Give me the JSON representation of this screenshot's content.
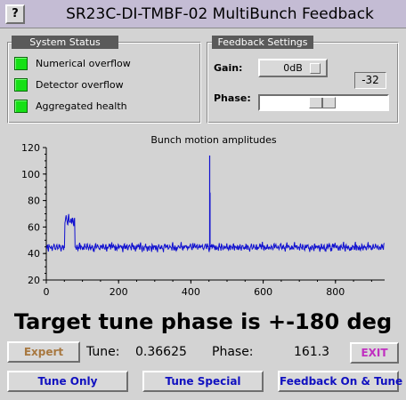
{
  "window": {
    "help_label": "?",
    "title": "SR23C-DI-TMBF-02 MultiBunch Feedback"
  },
  "system_status": {
    "title": "System Status",
    "items": [
      {
        "label": "Numerical overflow",
        "state": "ok",
        "color": "#16e016"
      },
      {
        "label": "Detector overflow",
        "state": "ok",
        "color": "#16e016"
      },
      {
        "label": "Aggregated health",
        "state": "ok",
        "color": "#16e016"
      }
    ]
  },
  "feedback_settings": {
    "title": "Feedback Settings",
    "gain_label": "Gain:",
    "gain_button": "0dB",
    "gain_value": "-32",
    "phase_label": "Phase:",
    "phase_position": 0.49
  },
  "chart_data": {
    "type": "line",
    "title": "Bunch motion amplitudes",
    "xlabel": "",
    "ylabel": "",
    "xlim": [
      0,
      936
    ],
    "ylim": [
      20,
      120
    ],
    "x_ticks": [
      0,
      200,
      400,
      600,
      800
    ],
    "y_ticks": [
      20,
      40,
      60,
      80,
      100,
      120
    ],
    "grid": false,
    "color": "#1010d0",
    "series": [
      {
        "values": [
          44,
          46,
          43,
          47,
          45,
          44,
          46,
          42,
          45,
          47,
          44,
          43,
          46,
          45,
          44,
          47,
          45,
          43,
          44,
          46,
          44,
          46,
          63,
          67,
          66,
          62,
          68,
          65,
          64,
          66,
          63,
          67,
          62,
          65,
          45,
          44,
          46,
          43,
          45,
          47,
          44,
          46,
          45,
          43,
          44,
          46,
          45,
          44,
          47,
          45,
          43,
          46,
          44,
          45,
          46,
          44,
          43,
          45,
          47,
          44,
          45,
          46,
          44,
          43,
          46,
          45,
          44,
          47,
          45,
          44,
          46,
          43,
          45,
          44,
          46,
          45,
          43,
          47,
          44,
          46,
          45,
          44,
          46,
          43,
          45,
          47,
          44,
          45,
          46,
          44,
          43,
          45,
          47,
          44,
          46,
          45,
          43,
          44,
          46,
          45,
          44,
          47,
          45,
          44,
          46,
          43,
          45,
          44,
          46,
          45,
          44,
          47,
          45,
          43,
          46,
          44,
          45,
          46,
          44,
          43,
          45,
          44,
          46,
          45,
          43,
          47,
          44,
          46,
          45,
          44,
          46,
          43,
          45,
          47,
          44,
          45,
          46,
          44,
          43,
          45,
          47,
          44,
          46,
          45,
          43,
          44,
          46,
          45,
          44,
          47,
          45,
          44,
          46,
          43,
          45,
          44,
          46,
          45,
          44,
          47,
          45,
          43,
          46,
          44,
          45,
          46,
          44,
          43,
          45,
          44,
          46,
          45,
          43,
          47,
          44,
          46,
          45,
          44,
          46,
          43,
          45,
          47,
          44,
          45,
          46,
          44,
          43,
          45,
          47,
          44,
          46,
          45,
          43,
          44,
          46,
          45,
          44,
          47,
          45,
          44,
          46,
          43,
          45,
          44,
          46,
          45,
          44,
          47,
          45,
          43,
          46,
          44,
          45,
          46,
          44,
          43,
          45,
          44,
          46,
          45,
          43,
          47,
          44,
          46,
          45,
          44,
          46,
          43,
          45,
          47,
          44,
          45,
          46,
          44,
          43,
          45,
          47,
          44,
          46,
          45,
          43,
          44,
          46,
          45,
          44,
          47,
          45,
          44,
          46,
          43,
          45,
          44,
          46,
          45,
          44,
          47,
          45,
          43,
          46,
          44,
          45,
          46,
          44,
          43,
          45,
          44,
          46,
          45,
          43,
          47,
          44,
          46,
          45,
          44,
          46,
          43,
          45,
          47,
          44,
          45,
          46,
          44,
          43,
          45,
          47,
          44,
          46,
          45,
          43,
          44,
          46,
          45,
          44,
          47,
          45,
          44,
          46,
          43,
          45,
          44,
          46,
          45,
          44,
          47,
          45,
          43,
          46,
          44,
          45,
          46,
          44,
          43,
          45,
          44,
          46,
          45,
          43,
          47,
          44,
          46,
          45,
          44,
          46,
          43,
          45,
          47,
          44,
          45,
          46,
          44,
          43,
          45,
          47,
          44,
          46,
          45,
          43,
          44,
          46,
          45,
          44,
          47,
          45,
          44,
          46,
          43,
          45,
          44,
          46,
          45,
          44,
          47,
          45,
          43,
          46,
          44,
          45,
          46,
          44,
          43,
          45,
          44,
          46,
          45,
          43,
          47,
          44,
          46,
          45,
          44,
          46,
          43,
          45,
          47,
          44,
          45,
          46,
          44,
          43,
          45,
          47,
          44,
          46,
          45,
          43,
          44,
          46,
          45,
          44,
          47,
          45,
          44,
          46,
          43,
          45,
          44,
          46,
          45,
          44,
          47
        ],
        "x_step": 2.34,
        "spikes": [
          {
            "x": 452,
            "y": 114
          },
          {
            "x": 453,
            "y": 86
          }
        ]
      }
    ]
  },
  "tune_readout": {
    "headline": "Target tune phase is +-180 deg",
    "tune_label": "Tune:",
    "tune_value": "0.36625",
    "phase_label": "Phase:",
    "phase_value": "161.3"
  },
  "buttons": {
    "expert": {
      "label": "Expert",
      "color": "#a87840"
    },
    "exit": {
      "label": "EXIT",
      "color": "#c030c0"
    },
    "tune_only": {
      "label": "Tune Only",
      "color": "#1010c0"
    },
    "tune_special": {
      "label": "Tune Special",
      "color": "#1010c0"
    },
    "feedback_on_tune": {
      "label": "Feedback On & Tune",
      "color": "#1010c0"
    }
  }
}
